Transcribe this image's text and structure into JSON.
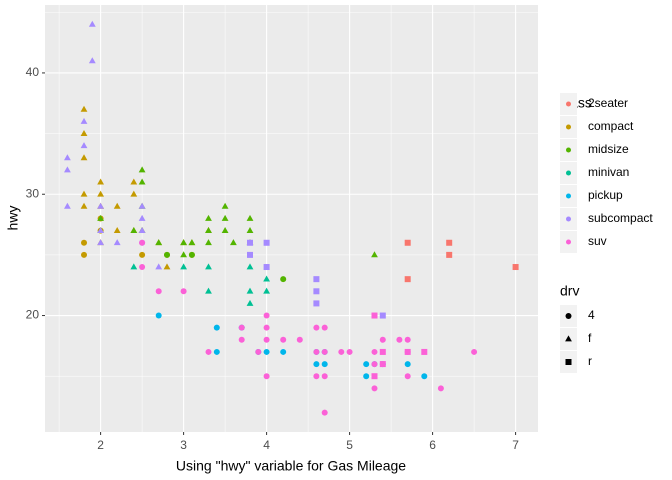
{
  "chart_data": {
    "type": "scatter",
    "x_label": "Using \"hwy\" variable for Gas Mileage",
    "y_label": "hwy",
    "xlim": [
      1.33,
      7.27
    ],
    "ylim": [
      10.4,
      45.6
    ],
    "xticks": [
      2,
      3,
      4,
      5,
      6,
      7
    ],
    "yticks": [
      20,
      30,
      40
    ],
    "xminor": [
      1.5,
      2.5,
      3.5,
      4.5,
      5.5,
      6.5
    ],
    "yminor": [
      15,
      25,
      35,
      45
    ],
    "grid": true,
    "legend_position": "right",
    "legend_title": "class",
    "shape_legend": {
      "title": "drv",
      "labels": [
        "4",
        "f",
        "r"
      ]
    },
    "series": [
      {
        "name": "2seater",
        "color": "#F8766D",
        "x": [
          5.7,
          5.7,
          6.2,
          6.2,
          7.0
        ],
        "values": [
          26,
          23,
          26,
          25,
          24
        ],
        "drv": [
          "r",
          "r",
          "r",
          "r",
          "r"
        ]
      },
      {
        "name": "compact",
        "color": "#C49A00",
        "x": [
          1.8,
          1.8,
          1.8,
          1.8,
          1.8,
          2.0,
          2.0,
          2.0,
          2.2,
          2.2,
          2.4,
          2.4,
          2.4,
          2.5,
          2.7,
          2.8,
          3.0,
          3.1,
          3.3,
          2.0,
          1.8,
          1.8,
          2.0,
          2.0,
          2.5,
          2.8,
          3.1
        ],
        "values": [
          37,
          35,
          33,
          30,
          29,
          31,
          30,
          29,
          27,
          29,
          31,
          30,
          27,
          27,
          26,
          24,
          26,
          26,
          27,
          26,
          26,
          25,
          28,
          27,
          25,
          25,
          25
        ],
        "drv": [
          "f",
          "f",
          "f",
          "f",
          "f",
          "f",
          "f",
          "f",
          "f",
          "f",
          "f",
          "f",
          "f",
          "f",
          "f",
          "f",
          "f",
          "f",
          "f",
          "f",
          "4",
          "4",
          "4",
          "4",
          "4",
          "4",
          "4"
        ]
      },
      {
        "name": "midsize",
        "color": "#53B400",
        "x": [
          2.0,
          2.0,
          2.4,
          2.5,
          2.5,
          2.5,
          2.5,
          2.7,
          3.0,
          3.1,
          3.3,
          3.3,
          3.3,
          3.5,
          3.5,
          3.5,
          3.6,
          3.8,
          3.8,
          3.8,
          3.0,
          5.3,
          3.1,
          4.2,
          2.8
        ],
        "values": [
          28,
          27,
          27,
          32,
          31,
          29,
          27,
          26,
          26,
          26,
          28,
          27,
          26,
          29,
          28,
          27,
          26,
          28,
          27,
          26,
          25,
          25,
          25,
          23,
          25
        ],
        "drv": [
          "f",
          "f",
          "f",
          "f",
          "f",
          "f",
          "f",
          "f",
          "f",
          "f",
          "f",
          "f",
          "f",
          "f",
          "f",
          "f",
          "f",
          "f",
          "f",
          "f",
          "f",
          "f",
          "4",
          "4",
          "4"
        ]
      },
      {
        "name": "minivan",
        "color": "#00C094",
        "x": [
          2.4,
          3.0,
          3.3,
          3.3,
          3.8,
          3.8,
          3.8,
          4.0,
          4.0
        ],
        "values": [
          24,
          24,
          24,
          22,
          24,
          22,
          21,
          23,
          22
        ],
        "drv": [
          "f",
          "f",
          "f",
          "f",
          "f",
          "f",
          "f",
          "f",
          "f"
        ]
      },
      {
        "name": "pickup",
        "color": "#00B6EB",
        "x": [
          2.7,
          3.4,
          3.4,
          3.7,
          3.9,
          4.0,
          4.2,
          4.6,
          4.6,
          4.7,
          4.7,
          5.2,
          5.2,
          5.3,
          5.4,
          5.7,
          5.9
        ],
        "values": [
          20,
          19,
          17,
          19,
          17,
          17,
          17,
          17,
          16,
          16,
          17,
          16,
          15,
          16,
          16,
          16,
          15
        ],
        "drv": [
          "4",
          "4",
          "4",
          "4",
          "4",
          "4",
          "4",
          "4",
          "4",
          "4",
          "4",
          "4",
          "4",
          "4",
          "4",
          "4",
          "4"
        ]
      },
      {
        "name": "subcompact",
        "color": "#A58AFF",
        "x": [
          1.6,
          1.6,
          1.6,
          1.8,
          1.8,
          1.9,
          1.9,
          2.0,
          2.0,
          2.0,
          2.2,
          2.5,
          2.5,
          2.5,
          2.7,
          3.8,
          3.8,
          4.0,
          4.0,
          4.6,
          4.6,
          4.6,
          5.4,
          2.5
        ],
        "values": [
          33,
          32,
          29,
          34,
          36,
          44,
          41,
          29,
          27,
          26,
          26,
          29,
          28,
          27,
          24,
          26,
          25,
          26,
          24,
          23,
          22,
          21,
          20,
          26
        ],
        "drv": [
          "f",
          "f",
          "f",
          "f",
          "f",
          "f",
          "f",
          "f",
          "f",
          "f",
          "f",
          "f",
          "f",
          "f",
          "f",
          "r",
          "r",
          "r",
          "r",
          "r",
          "r",
          "r",
          "r",
          "4"
        ]
      },
      {
        "name": "suv",
        "color": "#FB61D7",
        "x": [
          2.5,
          2.5,
          2.7,
          3.0,
          3.3,
          3.7,
          3.7,
          4.0,
          4.0,
          4.0,
          4.0,
          4.2,
          4.4,
          4.6,
          4.6,
          4.6,
          4.7,
          4.7,
          4.7,
          4.7,
          4.9,
          5.0,
          5.3,
          5.3,
          5.3,
          5.4,
          5.6,
          5.7,
          5.7,
          5.7,
          6.1,
          6.5,
          3.9,
          5.3,
          5.4,
          5.4,
          5.9,
          5.7,
          5.3
        ],
        "values": [
          26,
          24,
          22,
          22,
          17,
          19,
          18,
          20,
          19,
          18,
          15,
          18,
          18,
          19,
          17,
          15,
          19,
          17,
          15,
          12,
          17,
          17,
          17,
          16,
          14,
          18,
          18,
          18,
          17,
          15,
          14,
          17,
          17,
          20,
          17,
          16,
          17,
          17,
          15
        ],
        "drv": [
          "4",
          "4",
          "4",
          "4",
          "4",
          "4",
          "4",
          "4",
          "4",
          "4",
          "4",
          "4",
          "4",
          "4",
          "4",
          "4",
          "4",
          "4",
          "4",
          "4",
          "4",
          "4",
          "4",
          "4",
          "4",
          "4",
          "4",
          "4",
          "4",
          "4",
          "4",
          "4",
          "4",
          "r",
          "r",
          "r",
          "r",
          "r",
          "r"
        ]
      }
    ]
  }
}
